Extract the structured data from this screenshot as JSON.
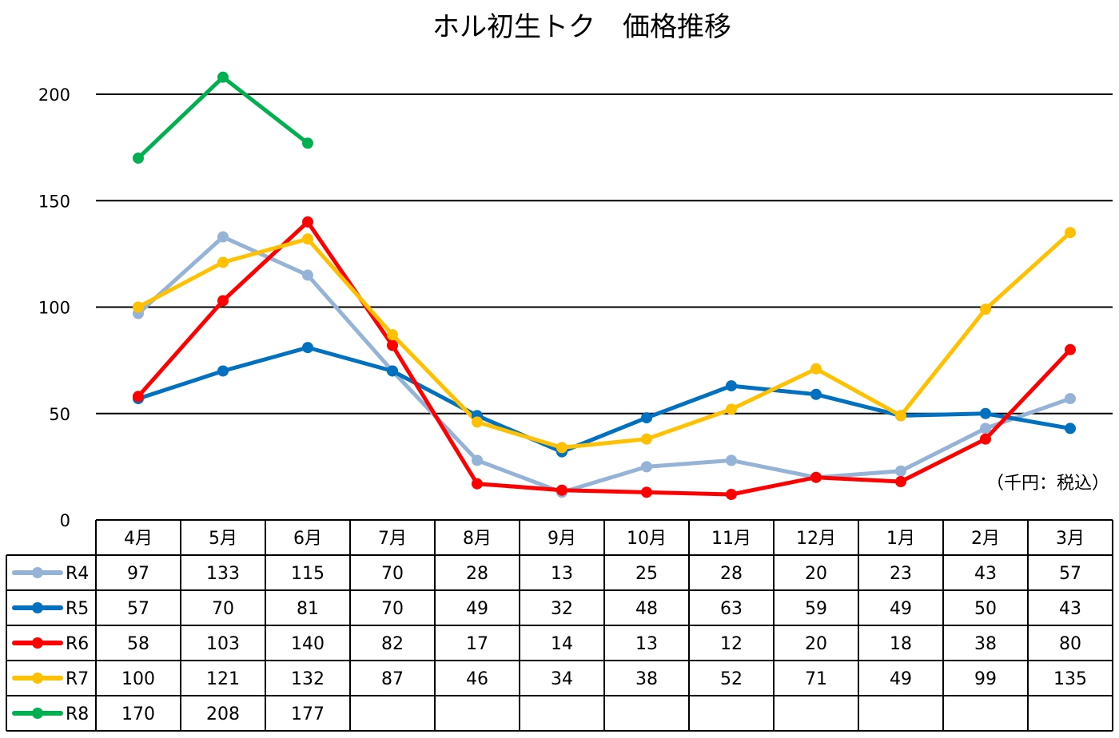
{
  "chart_data": {
    "type": "line",
    "title": "ホル初生トク　価格推移",
    "unit_note": "（千円：税込）",
    "categories": [
      "4月",
      "5月",
      "6月",
      "7月",
      "8月",
      "9月",
      "10月",
      "11月",
      "12月",
      "1月",
      "2月",
      "3月"
    ],
    "ylim": [
      0,
      200
    ],
    "yticks": [
      0,
      50,
      100,
      150,
      200
    ],
    "grid": true,
    "legend": "data-table",
    "series": [
      {
        "name": "R4",
        "color": "#95B3D7",
        "values": [
          97,
          133,
          115,
          70,
          28,
          13,
          25,
          28,
          20,
          23,
          43,
          57
        ]
      },
      {
        "name": "R5",
        "color": "#0070C0",
        "values": [
          57,
          70,
          81,
          70,
          49,
          32,
          48,
          63,
          59,
          49,
          50,
          43
        ]
      },
      {
        "name": "R6",
        "color": "#FF0000",
        "values": [
          58,
          103,
          140,
          82,
          17,
          14,
          13,
          12,
          20,
          18,
          38,
          80
        ]
      },
      {
        "name": "R7",
        "color": "#FFC000",
        "values": [
          100,
          121,
          132,
          87,
          46,
          34,
          38,
          52,
          71,
          49,
          99,
          135
        ]
      },
      {
        "name": "R8",
        "color": "#00B050",
        "values": [
          170,
          208,
          177,
          null,
          null,
          null,
          null,
          null,
          null,
          null,
          null,
          null
        ]
      }
    ]
  }
}
